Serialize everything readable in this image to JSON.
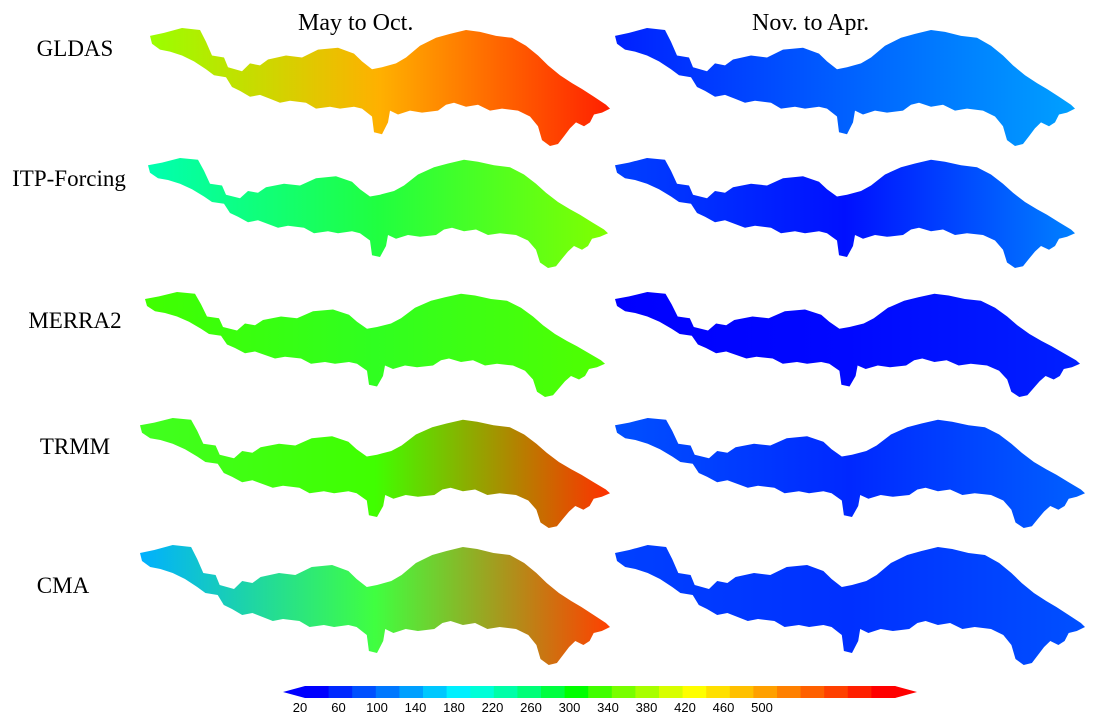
{
  "column_titles": [
    "May to Oct.",
    "Nov. to Apr."
  ],
  "row_labels": [
    "GLDAS",
    "ITP-Forcing",
    "MERRA2",
    "TRMM",
    "CMA"
  ],
  "colorbar": {
    "ticks": [
      "20",
      "60",
      "100",
      "140",
      "180",
      "220",
      "260",
      "300",
      "340",
      "380",
      "420",
      "460",
      "500"
    ],
    "colors": [
      "#0000ff",
      "#0028ff",
      "#0050ff",
      "#0078ff",
      "#00a0ff",
      "#00c8ff",
      "#00f0ff",
      "#00ffd8",
      "#00ffa8",
      "#00ff78",
      "#00ff40",
      "#00ff00",
      "#40ff00",
      "#78ff00",
      "#a8ff00",
      "#d8ff00",
      "#ffff00",
      "#ffe000",
      "#ffc000",
      "#ffa000",
      "#ff8000",
      "#ff6000",
      "#ff4000",
      "#ff2000",
      "#ff0000"
    ],
    "over_color": "#ff0000",
    "under_color": "#0000ff"
  },
  "panels": [
    {
      "row": "GLDAS",
      "season": "May to Oct.",
      "west_color": "#9aff00",
      "mid_color": "#ffb000",
      "east_color": "#ff2000"
    },
    {
      "row": "GLDAS",
      "season": "Nov. to Apr.",
      "west_color": "#0020ff",
      "mid_color": "#0060ff",
      "east_color": "#00a0ff"
    },
    {
      "row": "ITP-Forcing",
      "season": "May to Oct.",
      "west_color": "#00ffb0",
      "mid_color": "#20ff40",
      "east_color": "#80ff00"
    },
    {
      "row": "ITP-Forcing",
      "season": "Nov. to Apr.",
      "west_color": "#0040ff",
      "mid_color": "#0010ff",
      "east_color": "#0080ff"
    },
    {
      "row": "MERRA2",
      "season": "May to Oct.",
      "west_color": "#40ff00",
      "mid_color": "#30ff20",
      "east_color": "#50ff00"
    },
    {
      "row": "MERRA2",
      "season": "Nov. to Apr.",
      "west_color": "#0000ff",
      "mid_color": "#0008ff",
      "east_color": "#0020ff"
    },
    {
      "row": "TRMM",
      "season": "May to Oct.",
      "west_color": "#40ff20",
      "mid_color": "#40ff00",
      "east_color": "#ff3000"
    },
    {
      "row": "TRMM",
      "season": "Nov. to Apr.",
      "west_color": "#0050ff",
      "mid_color": "#0028ff",
      "east_color": "#0060ff"
    },
    {
      "row": "CMA",
      "season": "May to Oct.",
      "west_color": "#00b0ff",
      "mid_color": "#40ff40",
      "east_color": "#ff4000"
    },
    {
      "row": "CMA",
      "season": "Nov. to Apr.",
      "west_color": "#0040ff",
      "mid_color": "#0030ff",
      "east_color": "#0050ff"
    }
  ]
}
